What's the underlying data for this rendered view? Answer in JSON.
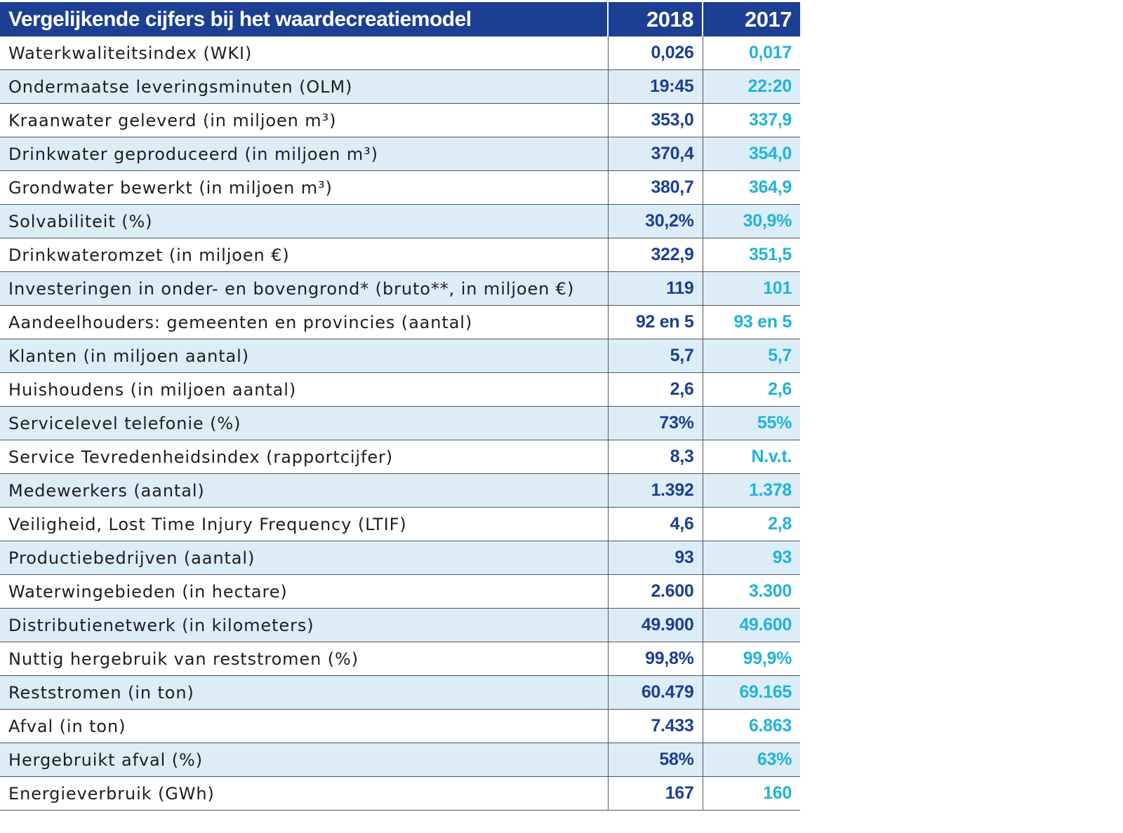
{
  "header": {
    "title": "Vergelijkende cijfers bij het waardecreatiemodel",
    "year1": "2018",
    "year2": "2017"
  },
  "rows": [
    {
      "label": "Waterkwaliteitsindex (WKI)",
      "v2018": "0,026",
      "v2017": "0,017"
    },
    {
      "label": "Ondermaatse leveringsminuten (OLM)",
      "v2018": "19:45",
      "v2017": "22:20"
    },
    {
      "label": "Kraanwater geleverd (in miljoen m³)",
      "v2018": "353,0",
      "v2017": "337,9"
    },
    {
      "label": "Drinkwater geproduceerd (in miljoen m³)",
      "v2018": "370,4",
      "v2017": "354,0"
    },
    {
      "label": "Grondwater bewerkt (in miljoen m³)",
      "v2018": "380,7",
      "v2017": "364,9"
    },
    {
      "label": "Solvabiliteit (%)",
      "v2018": "30,2%",
      "v2017": "30,9%"
    },
    {
      "label": "Drinkwateromzet (in miljoen €)",
      "v2018": "322,9",
      "v2017": "351,5"
    },
    {
      "label": "Investeringen in onder- en bovengrond* (bruto**, in miljoen €)",
      "v2018": "119",
      "v2017": "101"
    },
    {
      "label": "Aandeelhouders: gemeenten en provincies (aantal)",
      "v2018": "92 en 5",
      "v2017": "93 en 5"
    },
    {
      "label": "Klanten (in miljoen aantal)",
      "v2018": "5,7",
      "v2017": "5,7"
    },
    {
      "label": "Huishoudens (in miljoen aantal)",
      "v2018": "2,6",
      "v2017": "2,6"
    },
    {
      "label": "Servicelevel telefonie (%)",
      "v2018": "73%",
      "v2017": "55%"
    },
    {
      "label": "Service Tevredenheidsindex (rapportcijfer)",
      "v2018": "8,3",
      "v2017": "N.v.t."
    },
    {
      "label": "Medewerkers (aantal)",
      "v2018": "1.392",
      "v2017": "1.378"
    },
    {
      "label": "Veiligheid, Lost Time Injury Frequency (LTIF)",
      "v2018": "4,6",
      "v2017": "2,8"
    },
    {
      "label": "Productiebedrijven (aantal)",
      "v2018": "93",
      "v2017": "93"
    },
    {
      "label": "Waterwingebieden (in hectare)",
      "v2018": "2.600",
      "v2017": "3.300"
    },
    {
      "label": "Distributienetwerk (in kilometers)",
      "v2018": "49.900",
      "v2017": "49.600"
    },
    {
      "label": "Nuttig hergebruik van reststromen (%)",
      "v2018": "99,8%",
      "v2017": "99,9%"
    },
    {
      "label": "Reststromen (in ton)",
      "v2018": "60.479",
      "v2017": "69.165"
    },
    {
      "label": "Afval (in ton)",
      "v2018": "7.433",
      "v2017": "6.863"
    },
    {
      "label": "Hergebruikt afval (%)",
      "v2018": "58%",
      "v2017": "63%"
    },
    {
      "label": "Energieverbruik (GWh)",
      "v2018": "167",
      "v2017": "160"
    }
  ],
  "colors": {
    "header_background": "#1c3f93",
    "header_text": "#ffffff",
    "value_2018": "#1c3f93",
    "value_2017": "#21b3d6",
    "stripe_background": "#dcedf8"
  }
}
